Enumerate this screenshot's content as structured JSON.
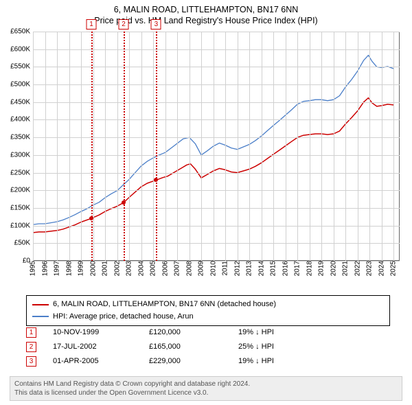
{
  "titles": {
    "main": "6, MALIN ROAD, LITTLEHAMPTON, BN17 6NN",
    "sub": "Price paid vs. HM Land Registry's House Price Index (HPI)"
  },
  "chart": {
    "type": "line",
    "x_min": 1995,
    "x_max": 2025.5,
    "y_min": 0,
    "y_max": 650000,
    "y_tick_step": 50000,
    "y_tick_labels": [
      "£0",
      "£50K",
      "£100K",
      "£150K",
      "£200K",
      "£250K",
      "£300K",
      "£350K",
      "£400K",
      "£450K",
      "£500K",
      "£550K",
      "£600K",
      "£650K"
    ],
    "x_ticks": [
      1995,
      1996,
      1997,
      1998,
      1999,
      2000,
      2001,
      2002,
      2003,
      2004,
      2005,
      2006,
      2007,
      2008,
      2009,
      2010,
      2011,
      2012,
      2013,
      2014,
      2015,
      2016,
      2017,
      2018,
      2019,
      2020,
      2021,
      2022,
      2023,
      2024,
      2025
    ],
    "grid_color": "#d0d0d0",
    "axis_color": "#666666",
    "background_color": "#ffffff",
    "label_fontsize": 10,
    "series": [
      {
        "name": "6, MALIN ROAD, LITTLEHAMPTON, BN17 6NN (detached house)",
        "color": "#cc0000",
        "line_width": 1.5,
        "data": [
          [
            1995,
            80000
          ],
          [
            1995.5,
            82000
          ],
          [
            1996,
            82000
          ],
          [
            1996.5,
            84000
          ],
          [
            1997,
            86000
          ],
          [
            1997.5,
            90000
          ],
          [
            1998,
            96000
          ],
          [
            1998.5,
            102000
          ],
          [
            1999,
            110000
          ],
          [
            1999.83,
            120000
          ],
          [
            2000.5,
            130000
          ],
          [
            2001,
            140000
          ],
          [
            2001.5,
            148000
          ],
          [
            2002,
            155000
          ],
          [
            2002.54,
            165000
          ],
          [
            2003,
            180000
          ],
          [
            2003.5,
            195000
          ],
          [
            2004,
            210000
          ],
          [
            2004.5,
            220000
          ],
          [
            2005.25,
            229000
          ],
          [
            2005.8,
            236000
          ],
          [
            2006.2,
            240000
          ],
          [
            2006.8,
            252000
          ],
          [
            2007.3,
            262000
          ],
          [
            2007.8,
            272000
          ],
          [
            2008.1,
            275000
          ],
          [
            2008.5,
            260000
          ],
          [
            2009,
            235000
          ],
          [
            2009.5,
            245000
          ],
          [
            2010,
            255000
          ],
          [
            2010.5,
            262000
          ],
          [
            2011,
            258000
          ],
          [
            2011.5,
            252000
          ],
          [
            2012,
            250000
          ],
          [
            2012.5,
            255000
          ],
          [
            2013,
            260000
          ],
          [
            2013.5,
            268000
          ],
          [
            2014,
            278000
          ],
          [
            2014.5,
            290000
          ],
          [
            2015,
            302000
          ],
          [
            2015.5,
            314000
          ],
          [
            2016,
            326000
          ],
          [
            2016.5,
            338000
          ],
          [
            2017,
            350000
          ],
          [
            2017.5,
            356000
          ],
          [
            2018,
            358000
          ],
          [
            2018.5,
            360000
          ],
          [
            2019,
            360000
          ],
          [
            2019.5,
            358000
          ],
          [
            2020,
            360000
          ],
          [
            2020.5,
            368000
          ],
          [
            2021,
            388000
          ],
          [
            2021.5,
            406000
          ],
          [
            2022,
            425000
          ],
          [
            2022.5,
            450000
          ],
          [
            2022.9,
            462000
          ],
          [
            2023.2,
            448000
          ],
          [
            2023.6,
            438000
          ],
          [
            2024,
            440000
          ],
          [
            2024.5,
            444000
          ],
          [
            2025,
            442000
          ]
        ]
      },
      {
        "name": "HPI: Average price, detached house, Arun",
        "color": "#4a7ec8",
        "line_width": 1.3,
        "data": [
          [
            1995,
            103000
          ],
          [
            1995.5,
            105000
          ],
          [
            1996,
            105000
          ],
          [
            1996.5,
            108000
          ],
          [
            1997,
            111000
          ],
          [
            1997.5,
            116000
          ],
          [
            1998,
            123000
          ],
          [
            1998.5,
            131000
          ],
          [
            1999,
            140000
          ],
          [
            1999.5,
            148000
          ],
          [
            2000,
            158000
          ],
          [
            2000.5,
            166000
          ],
          [
            2001,
            179000
          ],
          [
            2001.5,
            190000
          ],
          [
            2002,
            199000
          ],
          [
            2002.5,
            215000
          ],
          [
            2003,
            231000
          ],
          [
            2003.5,
            250000
          ],
          [
            2004,
            269000
          ],
          [
            2004.5,
            282000
          ],
          [
            2005,
            292000
          ],
          [
            2005.5,
            300000
          ],
          [
            2006,
            307000
          ],
          [
            2006.5,
            320000
          ],
          [
            2007,
            333000
          ],
          [
            2007.5,
            346000
          ],
          [
            2008,
            350000
          ],
          [
            2008.5,
            332000
          ],
          [
            2009,
            300000
          ],
          [
            2009.5,
            312000
          ],
          [
            2010,
            325000
          ],
          [
            2010.5,
            334000
          ],
          [
            2011,
            328000
          ],
          [
            2011.5,
            320000
          ],
          [
            2012,
            316000
          ],
          [
            2012.5,
            323000
          ],
          [
            2013,
            330000
          ],
          [
            2013.5,
            341000
          ],
          [
            2014,
            354000
          ],
          [
            2014.5,
            369000
          ],
          [
            2015,
            384000
          ],
          [
            2015.5,
            398000
          ],
          [
            2016,
            413000
          ],
          [
            2016.5,
            428000
          ],
          [
            2017,
            444000
          ],
          [
            2017.5,
            452000
          ],
          [
            2018,
            454000
          ],
          [
            2018.5,
            457000
          ],
          [
            2019,
            457000
          ],
          [
            2019.5,
            454000
          ],
          [
            2020,
            457000
          ],
          [
            2020.5,
            468000
          ],
          [
            2021,
            493000
          ],
          [
            2021.5,
            514000
          ],
          [
            2022,
            538000
          ],
          [
            2022.5,
            568000
          ],
          [
            2022.9,
            583000
          ],
          [
            2023.2,
            566000
          ],
          [
            2023.6,
            550000
          ],
          [
            2024,
            548000
          ],
          [
            2024.5,
            551000
          ],
          [
            2025,
            545000
          ]
        ]
      }
    ],
    "markers": [
      {
        "n": "1",
        "x": 1999.86,
        "y": 120000,
        "date": "10-NOV-1999",
        "price": "£120,000",
        "hpi": "19% ↓ HPI"
      },
      {
        "n": "2",
        "x": 2002.54,
        "y": 165000,
        "date": "17-JUL-2002",
        "price": "£165,000",
        "hpi": "25% ↓ HPI"
      },
      {
        "n": "3",
        "x": 2005.25,
        "y": 229000,
        "date": "01-APR-2005",
        "price": "£229,000",
        "hpi": "19% ↓ HPI"
      }
    ],
    "marker_color": "#cc0000",
    "marker_dot_color": "#cc0000",
    "badge_top_offset": -18
  },
  "legend": {
    "items": [
      {
        "label": "6, MALIN ROAD, LITTLEHAMPTON, BN17 6NN (detached house)",
        "color": "#cc0000"
      },
      {
        "label": "HPI: Average price, detached house, Arun",
        "color": "#4a7ec8"
      }
    ]
  },
  "footer": {
    "line1": "Contains HM Land Registry data © Crown copyright and database right 2024.",
    "line2": "This data is licensed under the Open Government Licence v3.0."
  }
}
